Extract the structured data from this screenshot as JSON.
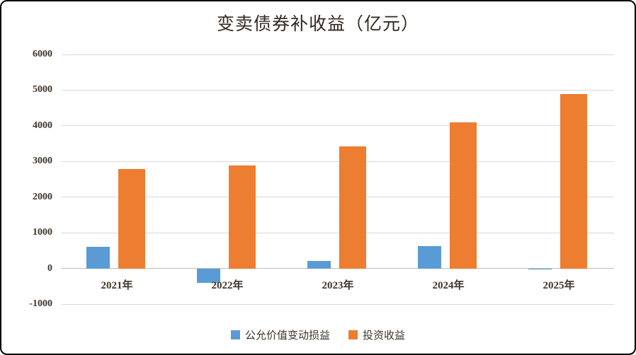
{
  "title": "变卖债券补收益（亿元）",
  "colors": {
    "series_blue": "#5B9BD5",
    "series_orange": "#ED7D31",
    "gridline": "#D9D9D9",
    "axis_line": "#BDBDBD",
    "label_text": "#3F352A",
    "frame_border": "#000000"
  },
  "chart_data": {
    "type": "bar",
    "title": "变卖债券补收益（亿元）",
    "categories": [
      "2021年",
      "2022年",
      "2023年",
      "2024年",
      "2025年"
    ],
    "series": [
      {
        "name": "公允价值变动损益",
        "color": "#5B9BD5",
        "values": [
          600,
          -400,
          200,
          620,
          -30
        ]
      },
      {
        "name": "投资收益",
        "color": "#ED7D31",
        "values": [
          2780,
          2880,
          3420,
          4100,
          4880
        ]
      }
    ],
    "ylim": [
      -1000,
      6000
    ],
    "yticks": [
      6000,
      5000,
      4000,
      3000,
      2000,
      1000,
      0,
      -1000
    ],
    "grid": true,
    "legend_position": "bottom",
    "xlabel": "",
    "ylabel": ""
  }
}
